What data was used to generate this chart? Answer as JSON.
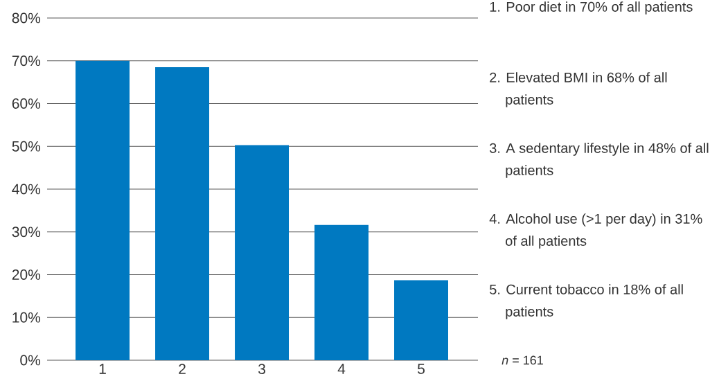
{
  "chart_data": {
    "type": "bar",
    "categories": [
      "1",
      "2",
      "3",
      "4",
      "5"
    ],
    "values": [
      70,
      68.5,
      50.3,
      31.6,
      18.7
    ],
    "color": "#0079c1",
    "ylim": [
      0,
      80
    ],
    "yticks": [
      {
        "value": 0,
        "label": "0%"
      },
      {
        "value": 10,
        "label": "10%"
      },
      {
        "value": 20,
        "label": "20%"
      },
      {
        "value": 30,
        "label": "30%"
      },
      {
        "value": 40,
        "label": "40%"
      },
      {
        "value": 50,
        "label": "50%"
      },
      {
        "value": 60,
        "label": "60%"
      },
      {
        "value": 70,
        "label": "70%"
      },
      {
        "value": 80,
        "label": "80%"
      }
    ],
    "grid": "y",
    "annotations": [
      "1. Poor diet in 70% of all patients",
      "2. Elevated BMI in 68% of all patients",
      "3. A sedentary lifestyle in 48% of all patients",
      "4. Alcohol use (>1 per day) in 31% of all patients",
      "5. Current tobacco in 18% of all patients",
      "*n* = 161"
    ]
  }
}
